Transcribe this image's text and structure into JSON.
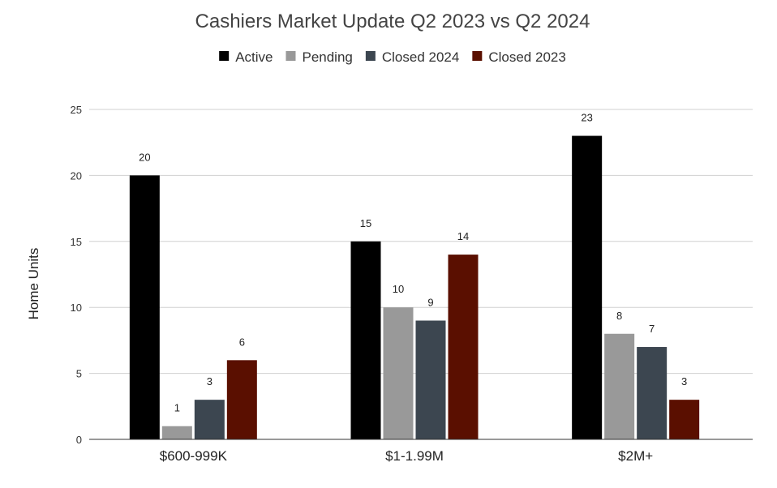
{
  "chart_data": {
    "type": "bar",
    "title": "Cashiers Market Update Q2 2023 vs Q2 2024",
    "xlabel": "",
    "ylabel": "Home Units",
    "ylim": [
      0,
      25
    ],
    "yticks": [
      "0",
      "5",
      "10",
      "15",
      "20",
      "25"
    ],
    "ytick_values": [
      0,
      5,
      10,
      15,
      20,
      25
    ],
    "grid": true,
    "legend_position": "top-center",
    "categories": [
      "$600-999K",
      "$1-1.99M",
      "$2M+"
    ],
    "series": [
      {
        "name": "Active",
        "color": "#000000",
        "values": [
          20,
          15,
          23
        ]
      },
      {
        "name": "Pending",
        "color": "#999999",
        "values": [
          1,
          10,
          8
        ]
      },
      {
        "name": "Closed 2024",
        "color": "#3c4650",
        "values": [
          3,
          9,
          7
        ]
      },
      {
        "name": "Closed 2023",
        "color": "#5a0f00",
        "values": [
          6,
          14,
          3
        ]
      }
    ]
  }
}
